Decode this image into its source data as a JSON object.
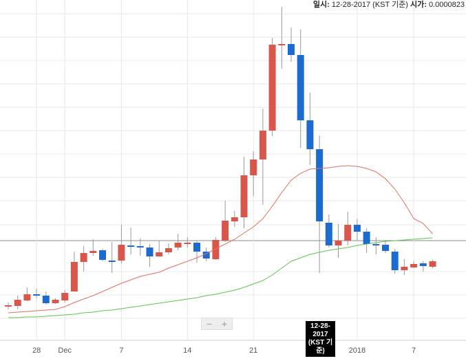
{
  "header": {
    "date_label": "일시:",
    "date": "12-28-2017 (KST 기준)",
    "open_label": "시가:",
    "open": "0.0000823"
  },
  "tooltip": {
    "lines": [
      "12-28-",
      "2017",
      "(KST 기",
      "준)"
    ]
  },
  "chart_data": {
    "type": "candlestick",
    "categories": [
      null,
      null,
      null,
      "28",
      null,
      null,
      "Dec",
      null,
      null,
      null,
      null,
      null,
      "7",
      null,
      null,
      null,
      null,
      null,
      null,
      "14",
      null,
      null,
      null,
      null,
      null,
      null,
      "21",
      null,
      null,
      null,
      null,
      null,
      null,
      null,
      null,
      null,
      null,
      "2018",
      null,
      null,
      null,
      null,
      null,
      "7",
      null,
      null
    ],
    "open": [
      54,
      55,
      63,
      72,
      70,
      59,
      63,
      76,
      119,
      132,
      136,
      121,
      121,
      143,
      142,
      140,
      127,
      133,
      140,
      146,
      147,
      134,
      123,
      150,
      178,
      184,
      245,
      268,
      310,
      435,
      436,
      420,
      325,
      283,
      176,
      143,
      150,
      173,
      163,
      145,
      144,
      134,
      107,
      111,
      117,
      112
    ],
    "high": [
      60,
      70,
      82,
      80,
      76,
      66,
      78,
      134,
      142,
      152,
      138,
      148,
      173,
      169,
      153,
      145,
      150,
      146,
      160,
      155,
      149,
      140,
      155,
      208,
      193,
      272,
      280,
      342,
      445,
      490,
      460,
      457,
      365,
      303,
      188,
      174,
      192,
      182,
      168,
      155,
      150,
      138,
      123,
      120,
      120,
      122
    ],
    "low": [
      50,
      50,
      62,
      66,
      57,
      58,
      60,
      76,
      105,
      128,
      120,
      103,
      117,
      130,
      128,
      112,
      127,
      130,
      136,
      140,
      118,
      120,
      122,
      148,
      170,
      168,
      215,
      202,
      302,
      400,
      410,
      285,
      260,
      103,
      140,
      125,
      143,
      150,
      132,
      130,
      132,
      102,
      100,
      110,
      105,
      110
    ],
    "close": [
      56,
      64,
      72,
      70,
      59,
      64,
      74,
      119,
      132,
      135,
      122,
      120,
      144,
      142,
      140,
      127,
      133,
      139,
      147,
      147,
      134,
      124,
      151,
      179,
      184,
      245,
      268,
      310,
      435,
      436,
      420,
      325,
      283,
      178,
      143,
      150,
      173,
      163,
      145,
      144,
      135,
      107,
      112,
      116,
      113,
      120
    ],
    "up_color": "#d9574a",
    "down_color": "#1c6bd0",
    "series": [
      {
        "color": "#e0705f",
        "values": [
          45,
          46,
          47,
          48,
          49,
          50,
          54,
          60,
          65,
          70,
          76,
          82,
          88,
          93,
          98,
          101,
          104,
          110,
          115,
          120,
          125,
          131,
          138,
          145,
          152,
          161,
          170,
          182,
          200,
          220,
          238,
          248,
          254,
          255,
          256,
          258,
          259,
          258,
          255,
          250,
          240,
          225,
          205,
          182,
          175,
          160
        ]
      },
      {
        "color": "#5cc54a",
        "values": [
          38,
          38,
          39,
          39,
          40,
          41,
          42,
          43,
          45,
          46,
          48,
          49,
          51,
          53,
          55,
          57,
          59,
          61,
          63,
          65,
          67,
          70,
          72,
          75,
          78,
          82,
          87,
          92,
          100,
          110,
          120,
          125,
          130,
          133,
          136,
          138,
          140,
          143,
          145,
          147,
          149,
          150,
          151,
          152,
          153,
          154
        ]
      }
    ],
    "ylim": [
      0,
      500
    ]
  }
}
